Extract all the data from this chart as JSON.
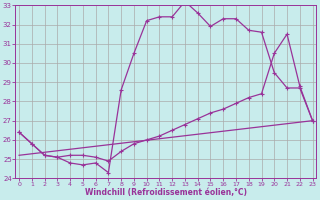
{
  "xlabel": "Windchill (Refroidissement éolien,°C)",
  "xlim_min": 0,
  "xlim_max": 23,
  "ylim_min": 24,
  "ylim_max": 33,
  "yticks": [
    24,
    25,
    26,
    27,
    28,
    29,
    30,
    31,
    32,
    33
  ],
  "xticks": [
    0,
    1,
    2,
    3,
    4,
    5,
    6,
    7,
    8,
    9,
    10,
    11,
    12,
    13,
    14,
    15,
    16,
    17,
    18,
    19,
    20,
    21,
    22,
    23
  ],
  "background_color": "#c8ecec",
  "line_color": "#993399",
  "grid_color": "#aaaaaa",
  "curve1_x": [
    0,
    1,
    2,
    3,
    4,
    5,
    6,
    7,
    8,
    9,
    10,
    11,
    12,
    13,
    14,
    15,
    16,
    17,
    18,
    19,
    20,
    21,
    22,
    23
  ],
  "curve1_y": [
    26.4,
    25.8,
    25.2,
    25.1,
    24.8,
    24.7,
    24.8,
    24.3,
    28.6,
    30.5,
    32.2,
    32.4,
    32.4,
    33.2,
    32.6,
    31.9,
    32.3,
    32.3,
    31.7,
    31.6,
    29.5,
    28.7,
    28.7,
    27.0
  ],
  "curve2_x": [
    0,
    1,
    2,
    3,
    4,
    5,
    6,
    7,
    8,
    9,
    10,
    11,
    12,
    13,
    14,
    15,
    16,
    17,
    18,
    19,
    20,
    21,
    22,
    23
  ],
  "curve2_y": [
    26.4,
    25.8,
    25.2,
    25.1,
    25.2,
    25.2,
    25.1,
    24.9,
    25.4,
    25.8,
    26.0,
    26.2,
    26.5,
    26.8,
    27.1,
    27.4,
    27.6,
    27.9,
    28.2,
    28.4,
    30.5,
    31.5,
    28.8,
    27.0
  ],
  "curve3_x": [
    0,
    23
  ],
  "curve3_y": [
    25.2,
    27.0
  ]
}
